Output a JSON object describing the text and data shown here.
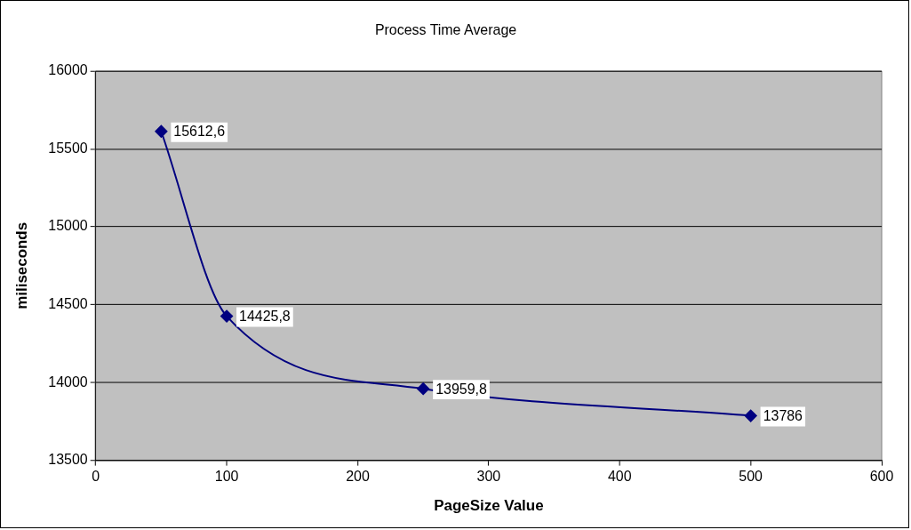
{
  "chart_data": {
    "type": "line",
    "title": "Process Time Average",
    "xlabel": "PageSize Value",
    "ylabel": "miliseconds",
    "x": [
      50,
      100,
      250,
      500
    ],
    "series": [
      {
        "color": "#000080",
        "values": [
          15612.6,
          14425.8,
          13959.8,
          13786
        ],
        "value_labels": [
          "15612,6",
          "14425,8",
          "13959,8",
          "13786"
        ]
      }
    ],
    "xlim": [
      0,
      600
    ],
    "xticks": [
      0,
      100,
      200,
      300,
      400,
      500,
      600
    ],
    "ylim": [
      13500,
      16000
    ],
    "yticks": [
      13500,
      14000,
      14500,
      15000,
      15500,
      16000
    ],
    "grid": "y",
    "legend": false,
    "marker": "diamond",
    "line_style": "solid"
  }
}
